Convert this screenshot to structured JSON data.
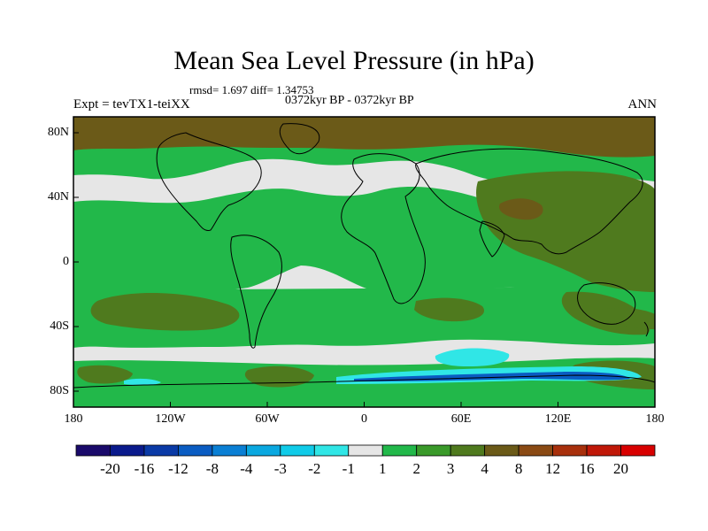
{
  "title": "Mean Sea Level Pressure (in hPa)",
  "stats": "rmsd= 1.697  diff= 1.34753",
  "period": "0372kyr BP - 0372kyr BP",
  "experiment": "Expt = tevTX1-teiXX",
  "season": "ANN",
  "y_ticks": [
    "80N",
    "40N",
    "0",
    "40S",
    "80S"
  ],
  "x_ticks": [
    "180",
    "120W",
    "60W",
    "0",
    "60E",
    "120E",
    "180"
  ],
  "colorbar": {
    "labels": [
      "-20",
      "-16",
      "-12",
      "-8",
      "-4",
      "-3",
      "-2",
      "-1",
      "1",
      "2",
      "3",
      "4",
      "8",
      "12",
      "16",
      "20"
    ],
    "colors": [
      "#1a0a6b",
      "#0a1a8c",
      "#0a3aa6",
      "#0a5cc2",
      "#0a7fd4",
      "#0aa8e0",
      "#10cbe8",
      "#30e6e6",
      "#e6e6e6",
      "#22b84a",
      "#3a9a2a",
      "#4f7a1e",
      "#6b5a18",
      "#8a4a14",
      "#a8300c",
      "#c01808",
      "#d80000"
    ]
  },
  "palette": {
    "neutral": "#e6e6e6",
    "green": "#22b84a",
    "olive": "#4f7a1e",
    "brown": "#6b5a18",
    "cyan": "#30e6e6",
    "blue": "#0a5cc2"
  }
}
